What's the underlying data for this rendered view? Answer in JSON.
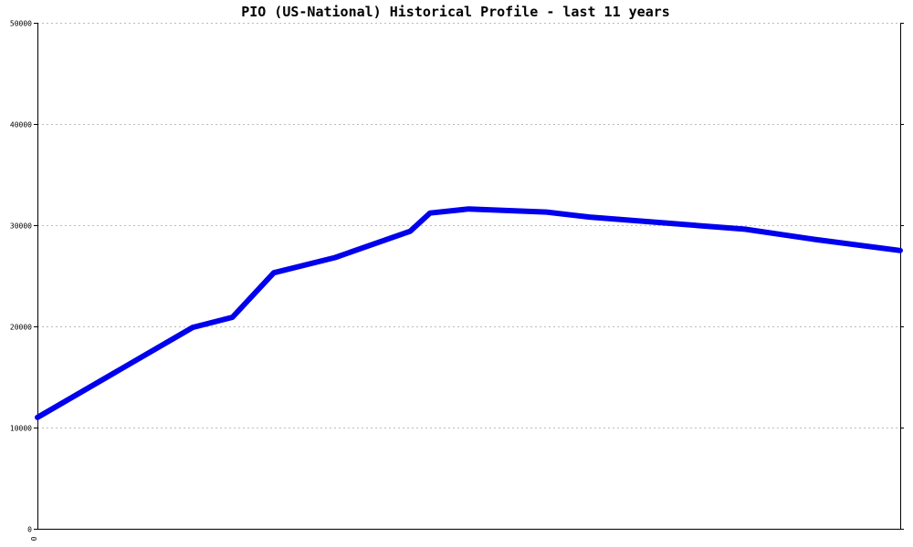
{
  "chart_data": {
    "type": "line",
    "title": "PIO (US-National) Historical Profile - last 11 years",
    "xlabel": "",
    "ylabel": "",
    "ylim": [
      0,
      50000
    ],
    "xlim": [
      0,
      1
    ],
    "y_ticks": [
      "0",
      "10000",
      "20000",
      "30000",
      "40000",
      "50000"
    ],
    "y_tick_values": [
      0,
      10000,
      20000,
      30000,
      40000,
      50000
    ],
    "x_tick_labels": [
      "0"
    ],
    "grid": true,
    "legend": "none",
    "series": [
      {
        "color": "#0000ee",
        "points": [
          {
            "x": 0.0,
            "y": 11000
          },
          {
            "x": 0.18,
            "y": 19900
          },
          {
            "x": 0.226,
            "y": 20900
          },
          {
            "x": 0.274,
            "y": 25300
          },
          {
            "x": 0.345,
            "y": 26800
          },
          {
            "x": 0.432,
            "y": 29400
          },
          {
            "x": 0.455,
            "y": 31200
          },
          {
            "x": 0.5,
            "y": 31600
          },
          {
            "x": 0.59,
            "y": 31300
          },
          {
            "x": 0.64,
            "y": 30800
          },
          {
            "x": 0.73,
            "y": 30200
          },
          {
            "x": 0.82,
            "y": 29600
          },
          {
            "x": 0.9,
            "y": 28600
          },
          {
            "x": 1.0,
            "y": 27500
          }
        ]
      }
    ]
  }
}
